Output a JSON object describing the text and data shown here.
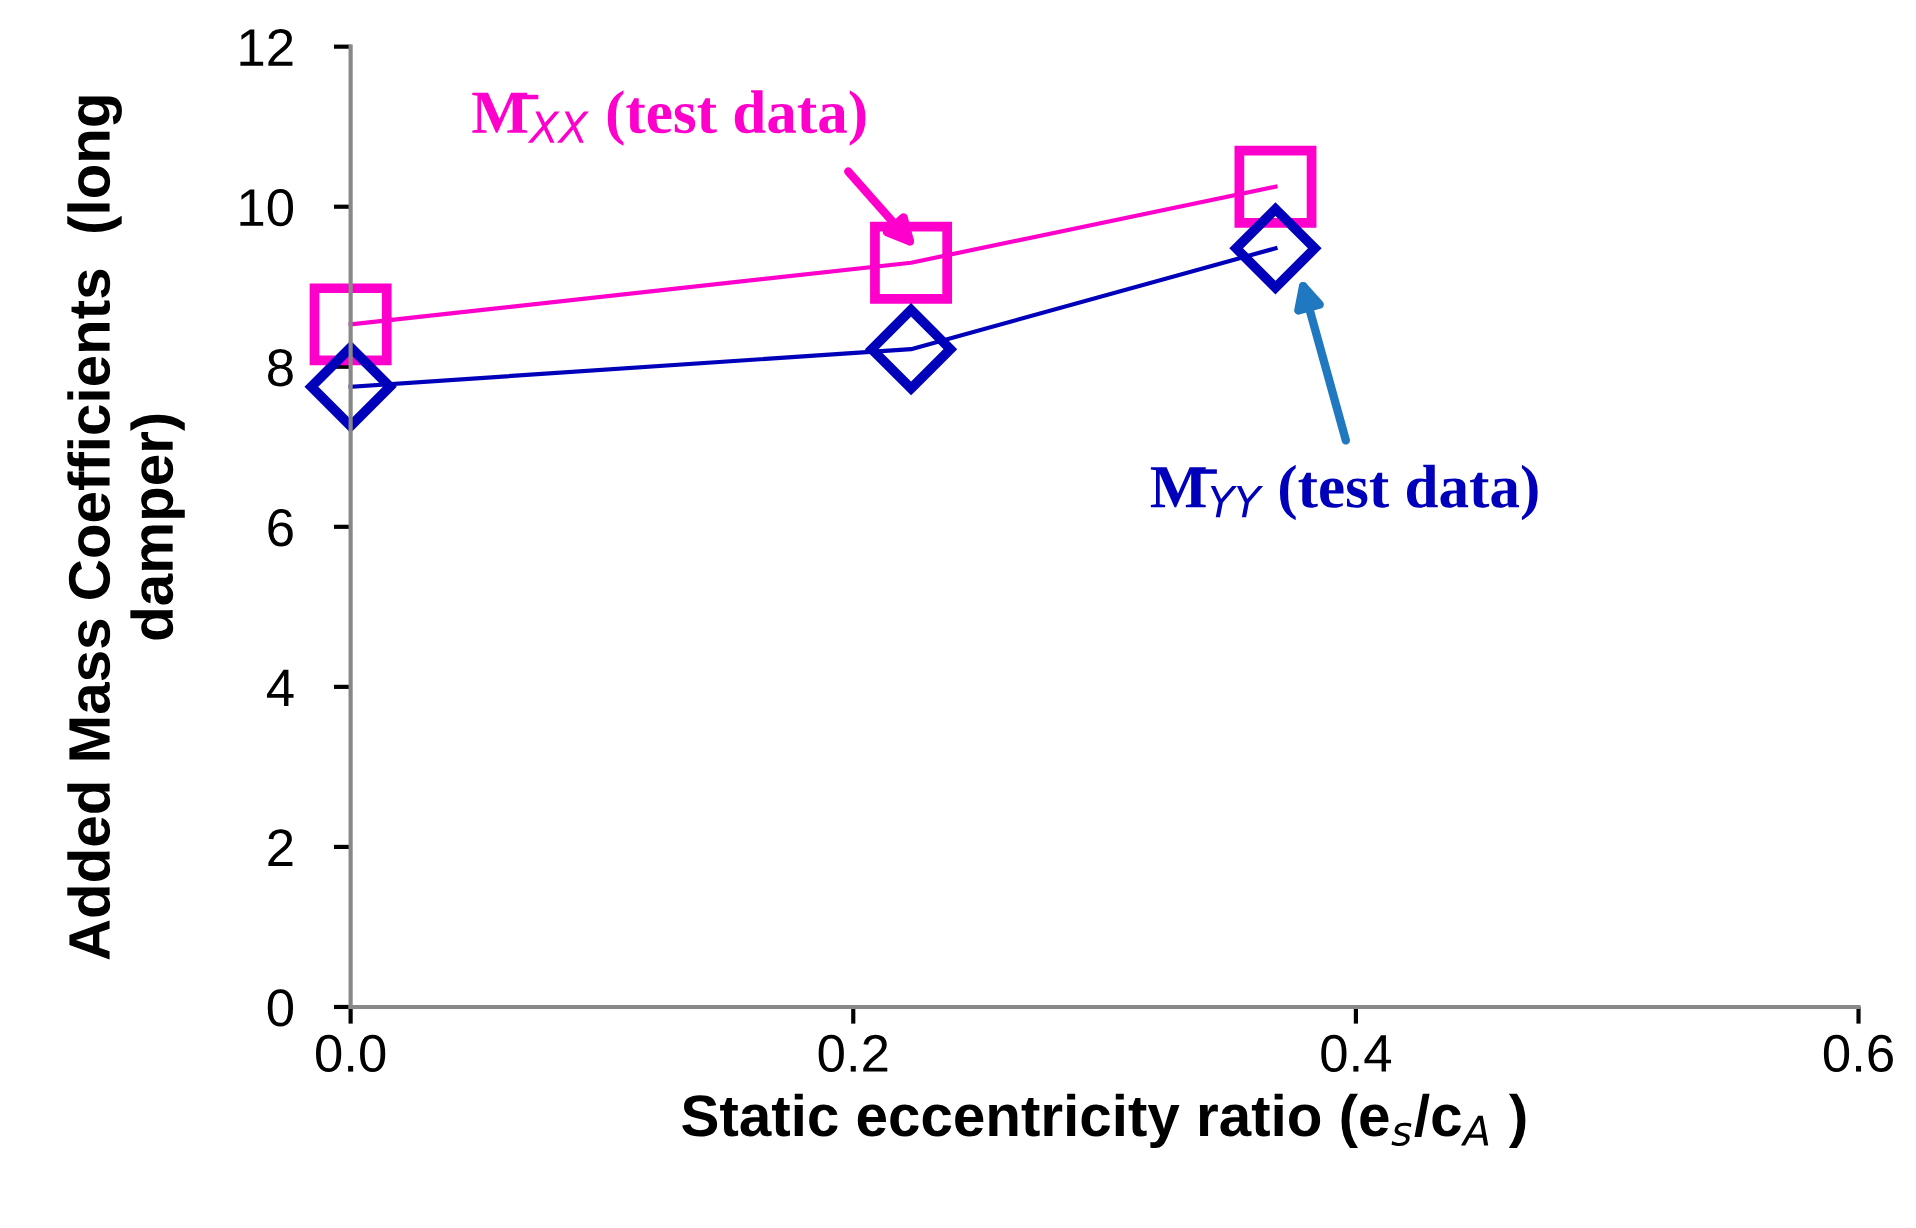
{
  "chart_data": {
    "type": "line",
    "xlabel": "Static eccentricity ratio (e$_{s}$/c$_{A}$ )",
    "ylabel": "Added Mass Coefficients  (long damper)",
    "x": [
      0.0,
      0.223,
      0.368
    ],
    "series": [
      {
        "color": "#ff00cc",
        "values": [
          8.53,
          9.3,
          10.25
        ],
        "marker": "square"
      },
      {
        "color": "#0000bb",
        "values": [
          7.75,
          8.22,
          9.48
        ],
        "marker": "diamond"
      }
    ],
    "xlim": [
      0,
      0.6
    ],
    "xticks": [
      {
        "value": 0,
        "label": "0.0"
      },
      {
        "value": 0.2,
        "label": "0.2"
      },
      {
        "value": 0.4,
        "label": "0.4"
      },
      {
        "value": 0.6,
        "label": "0.6"
      }
    ],
    "ylim": [
      0,
      12
    ],
    "yticks": [
      0,
      2,
      4,
      6,
      8,
      10,
      12
    ],
    "grid": false,
    "legend": false,
    "annotations": [
      "M̄$_{XX}$ (test data)",
      "M̄$_{YY}$ (test data)"
    ]
  }
}
